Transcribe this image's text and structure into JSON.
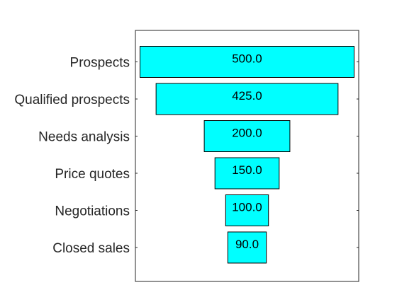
{
  "chart_data": {
    "type": "funnel",
    "title": "",
    "xlabel": "",
    "ylabel": "",
    "categories": [
      "Prospects",
      "Qualified prospects",
      "Needs analysis",
      "Price quotes",
      "Negotiations",
      "Closed sales"
    ],
    "values": [
      500,
      425,
      200,
      150,
      100,
      90
    ],
    "value_labels": [
      "500.0",
      "425.0",
      "200.0",
      "150.0",
      "100.0",
      "90.0"
    ],
    "bar_color": "#00ffff",
    "edge_color": "#000000",
    "grid": false,
    "legend": "none"
  }
}
